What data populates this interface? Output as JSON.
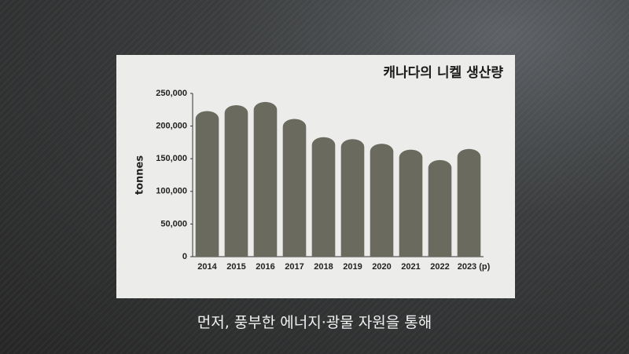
{
  "chart_data": {
    "type": "bar",
    "title": "캐나다의 니켈 생산량",
    "y_label": "tonnes",
    "categories": [
      "2014",
      "2015",
      "2016",
      "2017",
      "2018",
      "2019",
      "2020",
      "2021",
      "2022",
      "2023 (p)"
    ],
    "values": [
      223000,
      232000,
      237000,
      211000,
      183000,
      180000,
      173000,
      164000,
      148000,
      165000
    ],
    "color": "#6a6a5f",
    "ylim": [
      0,
      250000
    ],
    "yticks": [
      0,
      {
        "value": 50000,
        "label": "50,000"
      },
      {
        "value": 100000,
        "label": "100,000"
      },
      {
        "value": 150000,
        "label": "150,000"
      },
      {
        "value": 200000,
        "label": "200,000"
      },
      {
        "value": 250000,
        "label": "250,000"
      }
    ],
    "grid": false
  },
  "caption": "먼저, 풍부한 에너지·광물 자원을 통해"
}
